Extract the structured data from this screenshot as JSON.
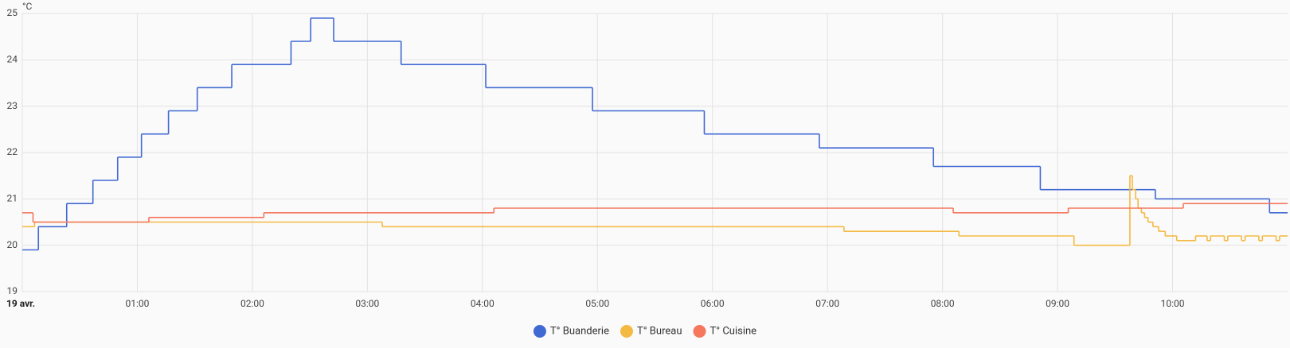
{
  "chart_data": {
    "type": "step-line",
    "y_unit": "°C",
    "xlim": [
      0,
      11
    ],
    "xticks": [
      {
        "value": 0,
        "label": "19 avr."
      },
      {
        "value": 1,
        "label": "01:00"
      },
      {
        "value": 2,
        "label": "02:00"
      },
      {
        "value": 3,
        "label": "03:00"
      },
      {
        "value": 4,
        "label": "04:00"
      },
      {
        "value": 5,
        "label": "05:00"
      },
      {
        "value": 6,
        "label": "06:00"
      },
      {
        "value": 7,
        "label": "07:00"
      },
      {
        "value": 8,
        "label": "08:00"
      },
      {
        "value": 9,
        "label": "09:00"
      },
      {
        "value": 10,
        "label": "10:00"
      }
    ],
    "ylim": [
      19,
      25
    ],
    "yticks": [
      19,
      20,
      21,
      22,
      23,
      24,
      25
    ],
    "grid": true,
    "legend": "bottom",
    "series": [
      {
        "name": "T° Buanderie",
        "color": "#4169d4",
        "x": [
          0,
          0.14,
          0.386,
          0.614,
          0.829,
          1.036,
          1.271,
          1.521,
          1.821,
          2.336,
          2.507,
          2.707,
          3.293,
          4.029,
          4.957,
          5.929,
          6.929,
          7.921,
          8.85,
          9.85,
          10.843
        ],
        "values": [
          19.9,
          20.4,
          20.9,
          21.4,
          21.9,
          22.4,
          22.9,
          23.4,
          23.9,
          24.4,
          24.9,
          24.4,
          23.9,
          23.4,
          22.9,
          22.4,
          22.1,
          21.7,
          21.2,
          21.0,
          20.7
        ]
      },
      {
        "name": "T° Bureau",
        "color": "#f4b942",
        "x": [
          0,
          0.107,
          3.129,
          7.143,
          8.143,
          9.143,
          9.629,
          9.65,
          9.679,
          9.7,
          9.729,
          9.757,
          9.786,
          9.829,
          9.879,
          9.936,
          10.036,
          10.2,
          10.3,
          10.33,
          10.45,
          10.48,
          10.6,
          10.63,
          10.75,
          10.78,
          10.9,
          10.93
        ],
        "values": [
          20.4,
          20.5,
          20.4,
          20.3,
          20.2,
          20.0,
          21.5,
          21.2,
          21.0,
          20.8,
          20.7,
          20.6,
          20.5,
          20.4,
          20.3,
          20.2,
          20.1,
          20.2,
          20.1,
          20.2,
          20.1,
          20.2,
          20.1,
          20.2,
          20.1,
          20.2,
          20.1,
          20.2
        ]
      },
      {
        "name": "T° Cuisine",
        "color": "#f4775e",
        "x": [
          0,
          0.093,
          1.1,
          2.1,
          4.1,
          8.093,
          9.093,
          10.093
        ],
        "values": [
          20.7,
          20.5,
          20.6,
          20.7,
          20.8,
          20.7,
          20.8,
          20.9
        ]
      }
    ]
  }
}
